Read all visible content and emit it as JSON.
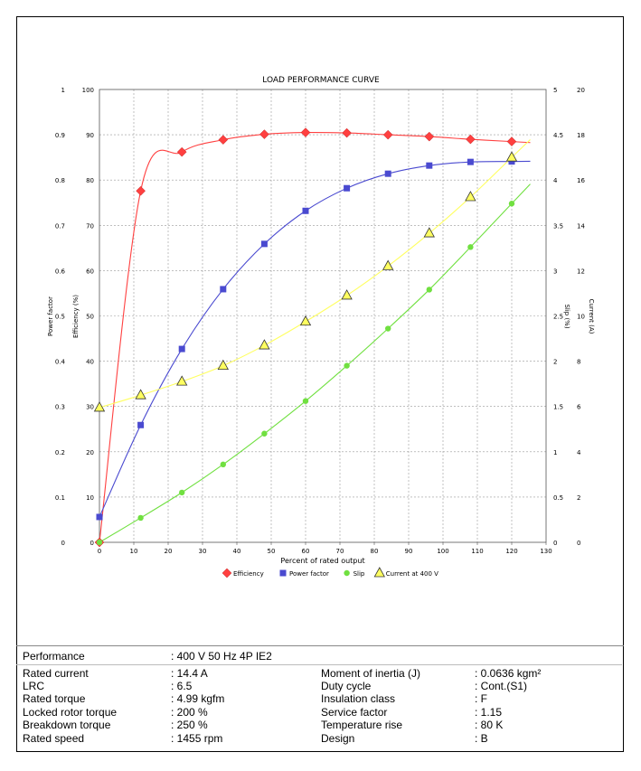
{
  "chart_data": {
    "type": "line",
    "title": "LOAD PERFORMANCE CURVE",
    "xlabel": "Percent of rated output",
    "xlim": [
      0,
      130
    ],
    "xticks": [
      0,
      10,
      20,
      30,
      40,
      50,
      60,
      70,
      80,
      90,
      100,
      110,
      120,
      130
    ],
    "grid": true,
    "legend_position": "bottom",
    "axes": {
      "power_factor": {
        "label": "Power factor",
        "side": "left-outer",
        "range": [
          0,
          1
        ],
        "ticks": [
          "0",
          "0.1",
          "0.2",
          "0.3",
          "0.4",
          "0.5",
          "0.6",
          "0.7",
          "0.8",
          "0.9",
          "1"
        ]
      },
      "efficiency": {
        "label": "Efficiency (%)",
        "side": "left-inner",
        "range": [
          0,
          100
        ],
        "ticks": [
          "0",
          "10",
          "20",
          "30",
          "40",
          "50",
          "60",
          "70",
          "80",
          "90",
          "100"
        ]
      },
      "slip": {
        "label": "Slip (%)",
        "side": "right-inner",
        "range": [
          0,
          5
        ],
        "ticks": [
          "0",
          "0.5",
          "1",
          "1.5",
          "2",
          "2.5",
          "3",
          "3.5",
          "4",
          "4.5",
          "5"
        ]
      },
      "current": {
        "label": "Current (A)",
        "side": "right-outer",
        "range": [
          0,
          20
        ],
        "ticks": [
          "0",
          "2",
          "4",
          "6",
          "8",
          "10",
          "12",
          "14",
          "16",
          "18",
          "20"
        ]
      }
    },
    "series": [
      {
        "name": "Efficiency",
        "axis": "efficiency",
        "color": "#ff4040",
        "marker": "diamond",
        "x": [
          0,
          12,
          24,
          36,
          48,
          60,
          72,
          84,
          96,
          108,
          120
        ],
        "y": [
          0,
          77.6,
          86.2,
          88.9,
          90.1,
          90.5,
          90.4,
          90.0,
          89.6,
          89.0,
          88.5
        ]
      },
      {
        "name": "Power factor",
        "axis": "power_factor",
        "color": "#4a4ad0",
        "marker": "square",
        "x": [
          0,
          12,
          24,
          36,
          48,
          60,
          72,
          84,
          96,
          108,
          120
        ],
        "y": [
          0.056,
          0.259,
          0.427,
          0.559,
          0.659,
          0.732,
          0.782,
          0.814,
          0.832,
          0.84,
          0.841
        ]
      },
      {
        "name": "Slip",
        "axis": "slip",
        "color": "#70e040",
        "marker": "circle",
        "x": [
          0,
          12,
          24,
          36,
          48,
          60,
          72,
          84,
          96,
          108,
          120
        ],
        "y": [
          0,
          0.27,
          0.55,
          0.86,
          1.2,
          1.56,
          1.95,
          2.36,
          2.79,
          3.26,
          3.74
        ]
      },
      {
        "name": "Current at 400 V",
        "axis": "current",
        "color": "#ffff60",
        "marker": "triangle",
        "x": [
          0,
          12,
          24,
          36,
          48,
          60,
          72,
          84,
          96,
          108,
          120
        ],
        "y": [
          5.95,
          6.5,
          7.1,
          7.8,
          8.7,
          9.75,
          10.9,
          12.2,
          13.65,
          15.25,
          17.0
        ]
      }
    ]
  },
  "specs": {
    "performance": {
      "label": "Performance",
      "value": ": 400 V 50 Hz 4P IE2"
    },
    "left": [
      {
        "label": "Rated current",
        "value": ": 14.4 A"
      },
      {
        "label": "LRC",
        "value": ": 6.5"
      },
      {
        "label": "Rated torque",
        "value": ": 4.99 kgfm"
      },
      {
        "label": "Locked rotor torque",
        "value": ": 200 %"
      },
      {
        "label": "Breakdown torque",
        "value": ": 250 %"
      },
      {
        "label": "Rated speed",
        "value": ": 1455 rpm"
      }
    ],
    "right": [
      {
        "label": "Moment of inertia (J)",
        "value": ": 0.0636 kgm²"
      },
      {
        "label": "Duty cycle",
        "value": ": Cont.(S1)"
      },
      {
        "label": "Insulation class",
        "value": ": F"
      },
      {
        "label": "Service factor",
        "value": ": 1.15"
      },
      {
        "label": "Temperature rise",
        "value": ": 80 K"
      },
      {
        "label": "Design",
        "value": ": B"
      }
    ]
  }
}
